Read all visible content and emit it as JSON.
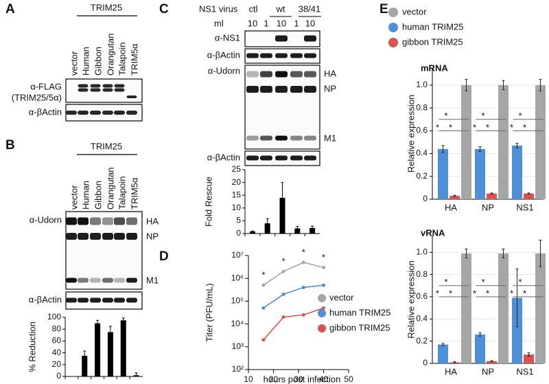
{
  "figure": {
    "panel_labels": [
      "A",
      "B",
      "C",
      "D",
      "E"
    ],
    "blot_a": {
      "group": "TRIM25",
      "lanes": [
        "vector",
        "Human",
        "Gibbon",
        "Orangutan",
        "Talapoin",
        "TRIM5α"
      ],
      "flag": "α-FLAG",
      "flag_sub": "(TRIM25/5α)",
      "actin": "α-βActin"
    },
    "blot_b": {
      "group": "TRIM25",
      "lanes": [
        "vector",
        "Human",
        "Gibbon",
        "Orangutan",
        "Talapoin",
        "TRIM5α"
      ],
      "antibody": "α-Udorn",
      "bands": [
        "HA",
        "NP",
        "M1"
      ],
      "actin": "α-βActin"
    },
    "blot_c": {
      "virus": "NS1 virus",
      "ml": "ml",
      "groups": [
        "ctl",
        "wt",
        "38/41"
      ],
      "doses": [
        "10",
        "1",
        "10",
        "1",
        "10"
      ],
      "ns1": "α-NS1",
      "actin": "α-βActin",
      "antibody": "α-Udorn",
      "bands": [
        "HA",
        "NP",
        "M1"
      ],
      "actin2": "α-βActin"
    }
  },
  "chart_data": [
    {
      "type": "bar",
      "ylabel": "% Reduction",
      "categories": [
        null,
        null,
        null,
        null,
        null,
        null
      ],
      "values": [
        0,
        35,
        90,
        75,
        95,
        2
      ],
      "errors": [
        0,
        8,
        5,
        10,
        4,
        4
      ],
      "color": "#000000",
      "ylim": [
        0,
        100
      ],
      "yticks": [
        0,
        20,
        40,
        60,
        80,
        100
      ]
    },
    {
      "type": "bar",
      "ylabel": "Fold Rescue",
      "categories": [
        null,
        null,
        null,
        null,
        null
      ],
      "values": [
        0.8,
        4,
        14,
        2,
        2.2
      ],
      "errors": [
        0.2,
        1.8,
        6,
        0.8,
        0.7
      ],
      "color": "#000000",
      "ylim": [
        0,
        25
      ],
      "yticks": [
        0,
        5,
        10,
        15,
        20,
        25
      ]
    },
    {
      "type": "line",
      "xlabel": "hours post infection",
      "ylabel": "Titer (PFU/mL)",
      "log_y": true,
      "x": [
        16,
        24,
        32,
        40
      ],
      "series": [
        {
          "name": "vector",
          "color": "#a6a6a6",
          "values": [
            500000,
            2000000,
            5000000,
            3000000
          ]
        },
        {
          "name": "human TRIM25",
          "color": "#4f8fd6",
          "values": [
            50000,
            200000,
            400000,
            500000
          ]
        },
        {
          "name": "gibbon TRIM25",
          "color": "#d9534f",
          "values": [
            2000,
            20000,
            25000,
            50000
          ]
        }
      ],
      "annotation": "*",
      "annotation_x": [
        16,
        24,
        32,
        40
      ],
      "xlim": [
        10,
        50
      ],
      "xticks": [
        10,
        20,
        30,
        40,
        50
      ],
      "ylim": [
        100,
        10000000
      ],
      "yticks": [
        {
          "value": 100,
          "label": "10²"
        },
        {
          "value": 1000,
          "label": "10³"
        },
        {
          "value": 10000,
          "label": "10⁴"
        },
        {
          "value": 100000,
          "label": "10⁵"
        },
        {
          "value": 1000000,
          "label": "10⁶"
        },
        {
          "value": 10000000,
          "label": "10⁷"
        }
      ]
    },
    {
      "type": "grouped_bar",
      "ylabel": "Relative expression",
      "categories": [
        "HA",
        "NP",
        "NS1"
      ],
      "series": [
        {
          "name": "vector",
          "color": "#a6a6a6"
        },
        {
          "name": "human TRIM25",
          "color": "#4f8fd6"
        },
        {
          "name": "gibbon TRIM25",
          "color": "#d9534f"
        }
      ],
      "significance": "*",
      "grid": true,
      "ylim": [
        0,
        1.15
      ],
      "yticks": [
        0,
        0.2,
        0.4,
        0.6,
        0.8,
        {
          "value": 1,
          "label": "1.0"
        }
      ],
      "subplots": [
        {
          "title": "mRNA",
          "values": [
            [
              1,
              1,
              1
            ],
            [
              0.44,
              0.44,
              0.47
            ],
            [
              0.03,
              0.05,
              0.05
            ]
          ],
          "errors": [
            [
              0.05,
              0.04,
              0.05
            ],
            [
              0.03,
              0.02,
              0.02
            ],
            [
              0.005,
              0.005,
              0.005
            ]
          ]
        },
        {
          "title": "vRNA",
          "values": [
            [
              0.99,
              0.99,
              0.99
            ],
            [
              0.17,
              0.26,
              0.59
            ],
            [
              0.01,
              0.02,
              0.08
            ]
          ],
          "errors": [
            [
              0.04,
              0.04,
              0.12
            ],
            [
              0.01,
              0.015,
              0.26
            ],
            [
              0.005,
              0.005,
              0.015
            ]
          ]
        }
      ]
    }
  ]
}
